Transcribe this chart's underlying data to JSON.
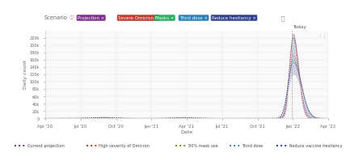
{
  "scenario_tags": [
    {
      "label": "Projection",
      "color": "#7b2d8b"
    },
    {
      "label": "Severe Omicron",
      "color": "#c0392b"
    },
    {
      "label": "Masks",
      "color": "#27ae60"
    },
    {
      "label": "Third dose",
      "color": "#2980b9"
    },
    {
      "label": "Reduce hesitancy",
      "color": "#2c3e8c"
    }
  ],
  "xlabel": "Date",
  "ylabel": "Daily count",
  "today_label": "Today",
  "background_color": "#ffffff",
  "plot_bg": "#f9f9f9",
  "grid_color": "#e5e5e5",
  "tick_dates": [
    "Apr '20",
    "Jul '20",
    "Oct '20",
    "Jan '21",
    "Apr '21",
    "Jul '21",
    "Oct '21",
    "Jan '22",
    "Apr '22"
  ],
  "ytick_vals": [
    0,
    20000,
    40000,
    60000,
    80000,
    100000,
    120000,
    140000,
    160000,
    180000,
    200000,
    220000
  ],
  "ytick_labels": [
    "0",
    "20k",
    "40k",
    "60k",
    "80k",
    "100k",
    "120k",
    "140k",
    "160k",
    "180k",
    "200k",
    "220k"
  ],
  "shade_color": "#a0a0c0",
  "shade_alpha": 0.45,
  "line_colors": [
    "#7b2d8b",
    "#c0392b",
    "#808020",
    "#4080c0",
    "#2c3e8c"
  ],
  "n_points": 1000,
  "peak_idx": 876,
  "today_idx": 870,
  "amp_main": 220000,
  "peak_sigma_up": 14,
  "peak_sigma_dn": 20,
  "legend_entries": [
    {
      "label": "Current projection",
      "color": "#7b2d8b"
    },
    {
      "label": "High severity of Omicron",
      "color": "#c0392b"
    },
    {
      "label": "80% mask use",
      "color": "#808020"
    },
    {
      "label": "Third dose",
      "color": "#4080c0"
    },
    {
      "label": "Reduce vaccine hesitancy",
      "color": "#2c3e8c"
    }
  ]
}
